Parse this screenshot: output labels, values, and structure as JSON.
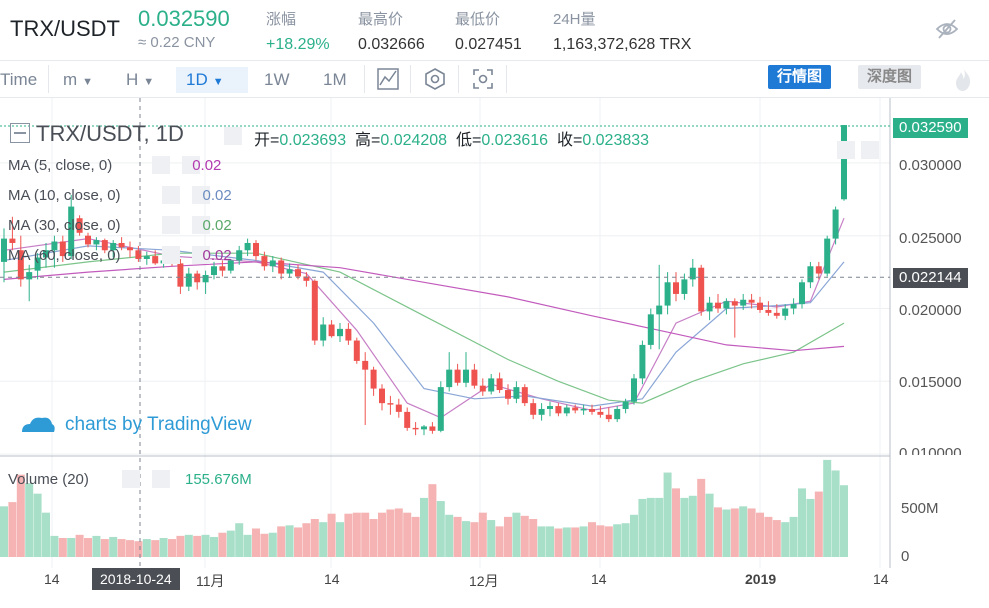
{
  "header": {
    "pair": "TRX/USDT",
    "last_price": "0.032590",
    "cny": "≈ 0.22 CNY",
    "change_label": "涨幅",
    "change_value": "+18.29%",
    "high_label": "最高价",
    "high_value": "0.032666",
    "low_label": "最低价",
    "low_value": "0.027451",
    "volume_label": "24H量",
    "volume_value": "1,163,372,628 TRX",
    "hide_icon": "eye-off-icon"
  },
  "toolbar": {
    "time_label": "Time",
    "minute_label": "m",
    "hour_label": "H",
    "day_label": "1D",
    "week_label": "1W",
    "month_label": "1M",
    "indicator_icon": "indicator-icon",
    "settings_icon": "settings-hex-icon",
    "screenshot_icon": "screenshot-icon",
    "kline_view": "行情图",
    "depth_view": "深度图",
    "brand_icon": "flame-icon"
  },
  "legend": {
    "title": "TRX/USDT, 1D",
    "open_label": "开=",
    "open_value": "0.023693",
    "high_label": "高=",
    "high_value": "0.024208",
    "low_label": "低=",
    "low_value": "0.023616",
    "close_label": "收=",
    "close_value": "0.023833",
    "ma": [
      {
        "label": "MA (5, close, 0)",
        "value": "0.02",
        "color": "#b23ab0"
      },
      {
        "label": "MA (10, close, 0)",
        "value": "0.02",
        "color": "#6b8cc0"
      },
      {
        "label": "MA (30, close, 0)",
        "value": "0.02",
        "color": "#5aa86a"
      },
      {
        "label": "MA (60, close, 0)",
        "value": "0.02",
        "color": "#a03a9b"
      }
    ],
    "watermark": "charts by TradingView",
    "volume_label": "Volume (20)",
    "volume_value": "155.676M"
  },
  "colors": {
    "up": "#2bb08a",
    "down": "#ef5350",
    "vol_up": "#a8dfc9",
    "vol_down": "#f5b3b3",
    "accent": "#1f7ad6"
  },
  "price_axis": {
    "ticks": [
      "0.030000",
      "0.025000",
      "0.020000",
      "0.015000",
      "0.010000"
    ],
    "tick_values": [
      0.03,
      0.025,
      0.02,
      0.015,
      0.01
    ],
    "last_price_tag": "0.032590",
    "crosshair_price_tag": "0.022144",
    "crosshair_price": 0.022144
  },
  "volume_axis": {
    "ticks": [
      "500M",
      "0"
    ]
  },
  "time_axis": {
    "labels": [
      "14",
      "11月",
      "14",
      "12月",
      "14",
      "2019",
      "14"
    ],
    "crosshair_label": "2018-10-24"
  },
  "chart_data": {
    "type": "candlestick",
    "volume_max": 900000000,
    "ohlc": [
      [
        0.0232,
        0.0255,
        0.0218,
        0.0248
      ],
      [
        0.0248,
        0.0263,
        0.024,
        0.0245
      ],
      [
        0.024,
        0.025,
        0.0215,
        0.022
      ],
      [
        0.022,
        0.023,
        0.0205,
        0.0225
      ],
      [
        0.0226,
        0.0238,
        0.022,
        0.0235
      ],
      [
        0.0235,
        0.0245,
        0.0228,
        0.024
      ],
      [
        0.024,
        0.025,
        0.0228,
        0.0246
      ],
      [
        0.0246,
        0.025,
        0.0232,
        0.0236
      ],
      [
        0.0236,
        0.0278,
        0.0234,
        0.027
      ],
      [
        0.0262,
        0.0264,
        0.025,
        0.0252
      ],
      [
        0.025,
        0.0252,
        0.0242,
        0.0244
      ],
      [
        0.0244,
        0.0249,
        0.024,
        0.0247
      ],
      [
        0.0247,
        0.0248,
        0.0238,
        0.024
      ],
      [
        0.024,
        0.0247,
        0.0235,
        0.0245
      ],
      [
        0.0245,
        0.0249,
        0.024,
        0.0242
      ],
      [
        0.0242,
        0.0246,
        0.0235,
        0.024
      ],
      [
        0.024,
        0.0243,
        0.0232,
        0.0234
      ],
      [
        0.0234,
        0.0239,
        0.023,
        0.0236
      ],
      [
        0.0236,
        0.024,
        0.023,
        0.0231
      ],
      [
        0.0231,
        0.0235,
        0.0228,
        0.0233
      ],
      [
        0.0233,
        0.0236,
        0.0229,
        0.0231
      ],
      [
        0.0231,
        0.0234,
        0.021,
        0.0215
      ],
      [
        0.0215,
        0.0228,
        0.0212,
        0.0224
      ],
      [
        0.0224,
        0.0226,
        0.0213,
        0.0218
      ],
      [
        0.0218,
        0.0226,
        0.021,
        0.0223
      ],
      [
        0.0223,
        0.0232,
        0.022,
        0.0229
      ],
      [
        0.0229,
        0.0233,
        0.0222,
        0.0226
      ],
      [
        0.0226,
        0.0234,
        0.0224,
        0.0233
      ],
      [
        0.0233,
        0.0243,
        0.023,
        0.024
      ],
      [
        0.024,
        0.0248,
        0.0236,
        0.0245
      ],
      [
        0.0245,
        0.0247,
        0.0233,
        0.0236
      ],
      [
        0.0236,
        0.0239,
        0.0226,
        0.0229
      ],
      [
        0.0229,
        0.0236,
        0.0225,
        0.0233
      ],
      [
        0.0233,
        0.0235,
        0.022,
        0.0224
      ],
      [
        0.0224,
        0.0231,
        0.0221,
        0.0227
      ],
      [
        0.0227,
        0.023,
        0.022,
        0.0222
      ],
      [
        0.0222,
        0.0225,
        0.0215,
        0.0219
      ],
      [
        0.0219,
        0.022,
        0.0175,
        0.0178
      ],
      [
        0.0178,
        0.0194,
        0.0174,
        0.0189
      ],
      [
        0.0189,
        0.0192,
        0.018,
        0.0181
      ],
      [
        0.0181,
        0.019,
        0.0177,
        0.0186
      ],
      [
        0.0186,
        0.019,
        0.0175,
        0.0178
      ],
      [
        0.0178,
        0.018,
        0.0162,
        0.0164
      ],
      [
        0.0164,
        0.017,
        0.012,
        0.0158
      ],
      [
        0.0158,
        0.016,
        0.014,
        0.0145
      ],
      [
        0.0145,
        0.0148,
        0.013,
        0.0135
      ],
      [
        0.0135,
        0.014,
        0.0127,
        0.0134
      ],
      [
        0.0134,
        0.0138,
        0.0125,
        0.0129
      ],
      [
        0.0129,
        0.0132,
        0.0116,
        0.0118
      ],
      [
        0.0118,
        0.0122,
        0.0113,
        0.0117
      ],
      [
        0.0117,
        0.012,
        0.0113,
        0.0119
      ],
      [
        0.0119,
        0.0122,
        0.0114,
        0.0116
      ],
      [
        0.0116,
        0.015,
        0.0115,
        0.0146
      ],
      [
        0.0146,
        0.017,
        0.0143,
        0.0158
      ],
      [
        0.0158,
        0.0162,
        0.0147,
        0.0149
      ],
      [
        0.0149,
        0.017,
        0.0146,
        0.0158
      ],
      [
        0.0158,
        0.0162,
        0.0145,
        0.0147
      ],
      [
        0.0147,
        0.0152,
        0.014,
        0.0143
      ],
      [
        0.0143,
        0.0155,
        0.0141,
        0.0152
      ],
      [
        0.0152,
        0.0156,
        0.0142,
        0.0144
      ],
      [
        0.0144,
        0.0148,
        0.0134,
        0.0138
      ],
      [
        0.0138,
        0.015,
        0.0135,
        0.0146
      ],
      [
        0.0146,
        0.0148,
        0.0133,
        0.0135
      ],
      [
        0.0135,
        0.0138,
        0.0124,
        0.0127
      ],
      [
        0.0127,
        0.0135,
        0.0123,
        0.0131
      ],
      [
        0.0131,
        0.0136,
        0.0126,
        0.0133
      ],
      [
        0.0133,
        0.0135,
        0.0126,
        0.0128
      ],
      [
        0.0128,
        0.0134,
        0.0126,
        0.0132
      ],
      [
        0.0132,
        0.0134,
        0.0128,
        0.013
      ],
      [
        0.013,
        0.0134,
        0.0127,
        0.0131
      ],
      [
        0.0131,
        0.0134,
        0.0127,
        0.0129
      ],
      [
        0.0129,
        0.0133,
        0.0125,
        0.0127
      ],
      [
        0.0127,
        0.0132,
        0.0122,
        0.0124
      ],
      [
        0.0124,
        0.0133,
        0.0122,
        0.0131
      ],
      [
        0.0131,
        0.0138,
        0.0128,
        0.0136
      ],
      [
        0.0136,
        0.0155,
        0.0134,
        0.0152
      ],
      [
        0.0152,
        0.0178,
        0.0148,
        0.0175
      ],
      [
        0.0175,
        0.02,
        0.0172,
        0.0196
      ],
      [
        0.0196,
        0.023,
        0.0172,
        0.0202
      ],
      [
        0.0202,
        0.0225,
        0.0196,
        0.0218
      ],
      [
        0.0218,
        0.0225,
        0.0205,
        0.021
      ],
      [
        0.021,
        0.0224,
        0.0206,
        0.022
      ],
      [
        0.022,
        0.0234,
        0.0215,
        0.0228
      ],
      [
        0.0228,
        0.023,
        0.0195,
        0.0198
      ],
      [
        0.0198,
        0.0208,
        0.0192,
        0.0204
      ],
      [
        0.0204,
        0.021,
        0.0197,
        0.02
      ],
      [
        0.02,
        0.0207,
        0.0196,
        0.0205
      ],
      [
        0.0205,
        0.0207,
        0.018,
        0.0202
      ],
      [
        0.0202,
        0.021,
        0.0199,
        0.0206
      ],
      [
        0.0206,
        0.021,
        0.02,
        0.0204
      ],
      [
        0.0204,
        0.0208,
        0.0197,
        0.0199
      ],
      [
        0.0199,
        0.0205,
        0.0195,
        0.0197
      ],
      [
        0.0197,
        0.0203,
        0.0193,
        0.0195
      ],
      [
        0.0195,
        0.0203,
        0.0192,
        0.02
      ],
      [
        0.02,
        0.0207,
        0.0196,
        0.0203
      ],
      [
        0.0203,
        0.022,
        0.02,
        0.0218
      ],
      [
        0.0218,
        0.0232,
        0.0214,
        0.0229
      ],
      [
        0.0229,
        0.0232,
        0.022,
        0.0224
      ],
      [
        0.0224,
        0.025,
        0.0222,
        0.0248
      ],
      [
        0.0248,
        0.027,
        0.0244,
        0.0268
      ],
      [
        0.0275,
        0.0326,
        0.0274,
        0.0326
      ]
    ],
    "volume": [
      480,
      520,
      780,
      700,
      600,
      420,
      200,
      180,
      180,
      210,
      180,
      200,
      170,
      190,
      170,
      160,
      150,
      170,
      160,
      180,
      170,
      200,
      210,
      200,
      210,
      190,
      230,
      250,
      320,
      210,
      270,
      220,
      230,
      290,
      300,
      280,
      320,
      360,
      330,
      410,
      330,
      410,
      420,
      420,
      360,
      420,
      450,
      460,
      420,
      380,
      560,
      690,
      530,
      400,
      380,
      340,
      330,
      420,
      350,
      290,
      380,
      420,
      390,
      360,
      290,
      290,
      270,
      280,
      280,
      290,
      330,
      300,
      290,
      310,
      320,
      400,
      550,
      560,
      560,
      800,
      650,
      560,
      580,
      740,
      600,
      470,
      450,
      460,
      480,
      460,
      420,
      380,
      350,
      330,
      380,
      650,
      550,
      620,
      920,
      820,
      680
    ],
    "ma_series": {
      "ma5": [
        [
          0,
          0.024
        ],
        [
          10,
          0.0248
        ],
        [
          20,
          0.0236
        ],
        [
          30,
          0.0232
        ],
        [
          36,
          0.0224
        ],
        [
          42,
          0.0185
        ],
        [
          48,
          0.0135
        ],
        [
          52,
          0.0125
        ],
        [
          58,
          0.0148
        ],
        [
          64,
          0.0138
        ],
        [
          70,
          0.013
        ],
        [
          75,
          0.0135
        ],
        [
          80,
          0.019
        ],
        [
          86,
          0.0205
        ],
        [
          92,
          0.0201
        ],
        [
          96,
          0.0205
        ],
        [
          100,
          0.0262
        ]
      ],
      "ma10": [
        [
          0,
          0.0233
        ],
        [
          10,
          0.0243
        ],
        [
          20,
          0.024
        ],
        [
          30,
          0.0233
        ],
        [
          38,
          0.0225
        ],
        [
          44,
          0.019
        ],
        [
          50,
          0.0145
        ],
        [
          56,
          0.0138
        ],
        [
          62,
          0.014
        ],
        [
          70,
          0.0133
        ],
        [
          76,
          0.0138
        ],
        [
          80,
          0.017
        ],
        [
          86,
          0.02
        ],
        [
          92,
          0.0202
        ],
        [
          96,
          0.0204
        ],
        [
          100,
          0.0232
        ]
      ],
      "ma30": [
        [
          0,
          0.0225
        ],
        [
          10,
          0.0232
        ],
        [
          20,
          0.0238
        ],
        [
          30,
          0.0238
        ],
        [
          40,
          0.0225
        ],
        [
          50,
          0.0195
        ],
        [
          60,
          0.0165
        ],
        [
          66,
          0.015
        ],
        [
          72,
          0.0137
        ],
        [
          76,
          0.0135
        ],
        [
          82,
          0.015
        ],
        [
          88,
          0.0162
        ],
        [
          94,
          0.017
        ],
        [
          100,
          0.019
        ]
      ],
      "ma60": [
        [
          0,
          0.022
        ],
        [
          10,
          0.0225
        ],
        [
          20,
          0.0229
        ],
        [
          30,
          0.0232
        ],
        [
          40,
          0.0228
        ],
        [
          50,
          0.0218
        ],
        [
          60,
          0.0208
        ],
        [
          70,
          0.0195
        ],
        [
          78,
          0.0185
        ],
        [
          86,
          0.0175
        ],
        [
          94,
          0.0171
        ],
        [
          100,
          0.0174
        ]
      ]
    }
  }
}
